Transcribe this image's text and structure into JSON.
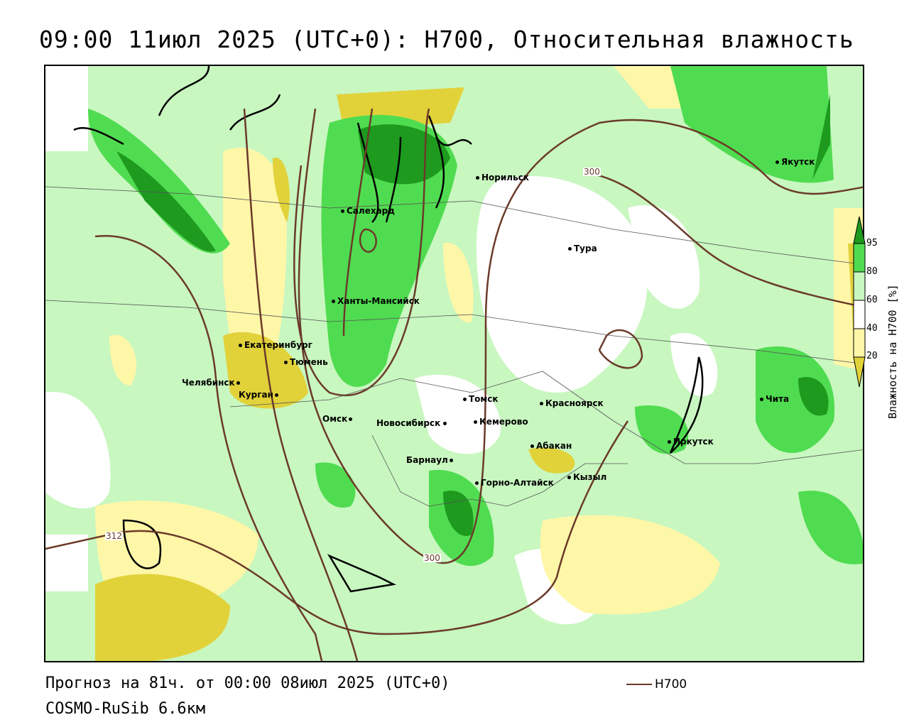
{
  "title": "09:00 11июл 2025 (UTC+0): H700, Относительная влажность",
  "map": {
    "cities": [
      "Якутск",
      "Норильск",
      "Салехард",
      "Тура",
      "Ханты-Мансийск",
      "Екатеринбург",
      "Тюмень",
      "Челябинск",
      "Курган",
      "Омск",
      "Томск",
      "Красноярск",
      "Кемерово",
      "Новосибирск",
      "Чита",
      "Иркутск",
      "Абакан",
      "Барнаул",
      "Горно-Алтайск",
      "Кызыл"
    ],
    "contour_labels": [
      "300",
      "300",
      "312"
    ]
  },
  "colorbar": {
    "title": "Влажность на H700 [%]",
    "ticks": [
      "95",
      "80",
      "60",
      "40",
      "20"
    ],
    "colors": {
      "dark_green": "#1e9a1e",
      "green": "#50dc50",
      "light_green": "#c8f7c0",
      "white": "#ffffff",
      "pale_yellow": "#fff7a8",
      "yellow": "#e2d23a"
    }
  },
  "footer": {
    "forecast": "Прогноз на 81ч. от 00:00 08июл 2025 (UTC+0)",
    "model": "COSMO-RuSib 6.6км",
    "legend_label": "H700",
    "legend_color": "#6b3a2a"
  }
}
